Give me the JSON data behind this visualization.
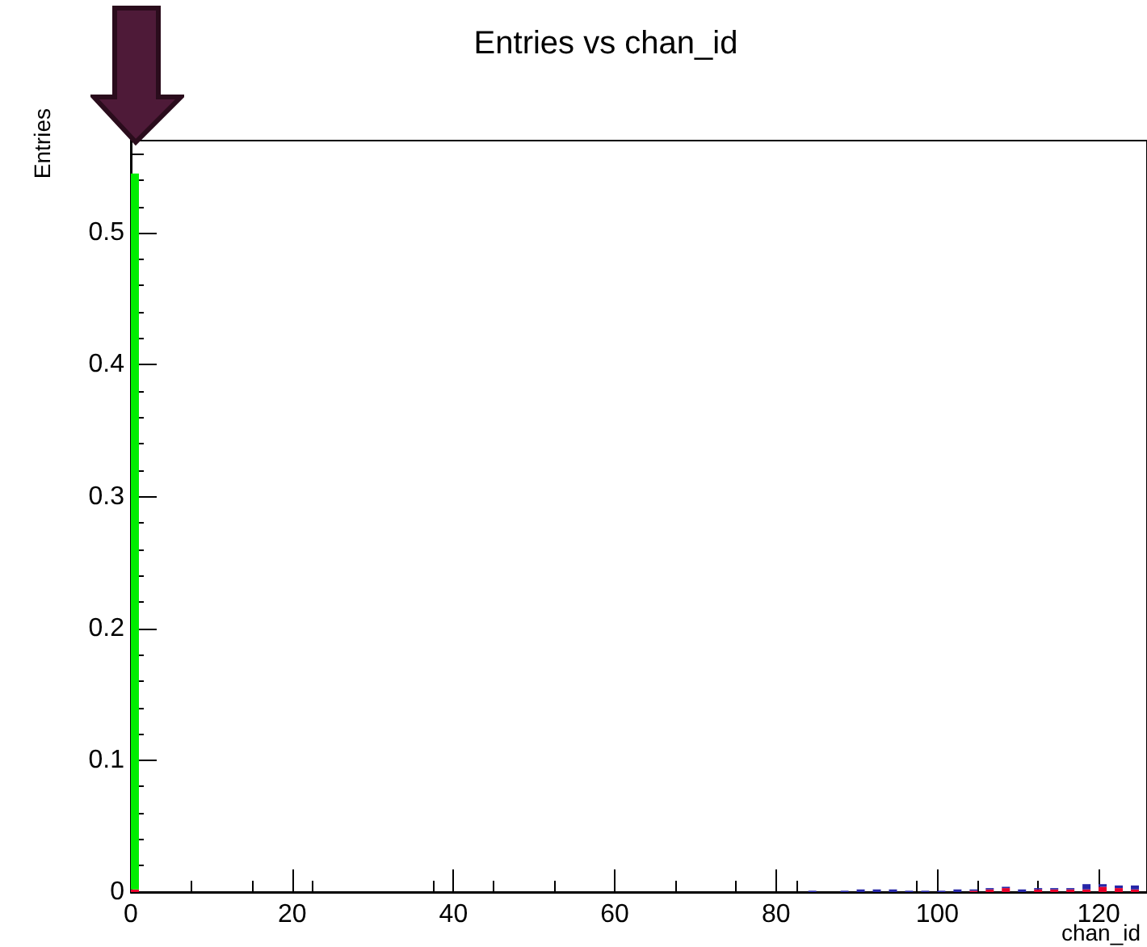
{
  "chart_data": {
    "type": "bar",
    "title": "Entries vs chan_id",
    "xlabel": "chan_id",
    "ylabel": "Entries",
    "stacked": true,
    "grid": false,
    "xlim": [
      0,
      126
    ],
    "xticks": [
      0,
      20,
      40,
      60,
      80,
      100,
      120
    ],
    "ylim": [
      0,
      0.57
    ],
    "yticks": [
      0,
      0.1,
      0.2,
      0.3,
      0.4,
      0.5
    ],
    "x": [
      0.5,
      84.5,
      88.5,
      90.5,
      92.5,
      94.5,
      96.5,
      98.5,
      100.5,
      102.5,
      104.5,
      106.5,
      108.5,
      110.5,
      112.5,
      114.5,
      116.5,
      118.5,
      120.5,
      122.5,
      124.5
    ],
    "series": [
      {
        "color": "#e8002a",
        "values": [
          0.002,
          0,
          0,
          0,
          0,
          0,
          0,
          0,
          0,
          0,
          0.001,
          0.002,
          0.003,
          0,
          0.002,
          0.002,
          0.002,
          0.002,
          0.004,
          0.003,
          0.002
        ]
      },
      {
        "color": "#2626a8",
        "values": [
          0,
          0.001,
          0.001,
          0.002,
          0.002,
          0.002,
          0.001,
          0.001,
          0.001,
          0.002,
          0.001,
          0.001,
          0.001,
          0.002,
          0.001,
          0.001,
          0.001,
          0.004,
          0.002,
          0.002,
          0.003
        ]
      },
      {
        "color": "#00ee00",
        "values": [
          0.543,
          0,
          0,
          0,
          0,
          0,
          0,
          0,
          0,
          0,
          0,
          0,
          0,
          0,
          0,
          0,
          0,
          0,
          0,
          0,
          0
        ]
      }
    ]
  }
}
